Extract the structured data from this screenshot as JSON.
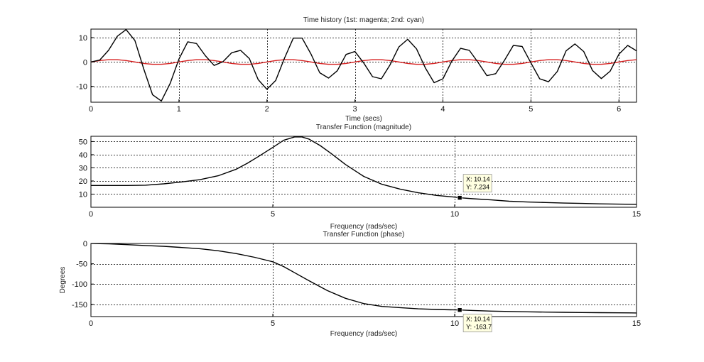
{
  "colors": {
    "response": "#000000",
    "input": "#d62020",
    "tip_bg": "#ffffe1",
    "grid": "#000000"
  },
  "chart_data": [
    {
      "id": "time",
      "type": "line",
      "title": "Time history (1st: magenta; 2nd: cyan)",
      "xlabel": "Time (secs)",
      "ylabel": "",
      "xlim": [
        0,
        6.2
      ],
      "ylim": [
        -16.5,
        13.5
      ],
      "xticks": [
        0,
        1,
        2,
        3,
        4,
        5,
        6
      ],
      "yticks": [
        -10,
        0,
        10
      ],
      "grid": true,
      "series": [
        {
          "color_key": "response",
          "x": [
            0,
            0.1,
            0.2,
            0.3,
            0.4,
            0.5,
            0.6,
            0.7,
            0.8,
            0.9,
            1.0,
            1.1,
            1.2,
            1.3,
            1.4,
            1.5,
            1.6,
            1.7,
            1.8,
            1.9,
            2.0,
            2.1,
            2.2,
            2.3,
            2.4,
            2.5,
            2.6,
            2.7,
            2.8,
            2.9,
            3.0,
            3.1,
            3.2,
            3.3,
            3.4,
            3.5,
            3.6,
            3.7,
            3.8,
            3.9,
            4.0,
            4.1,
            4.2,
            4.3,
            4.4,
            4.5,
            4.6,
            4.7,
            4.8,
            4.9,
            5.0,
            5.1,
            5.2,
            5.3,
            5.4,
            5.5,
            5.6,
            5.7,
            5.8,
            5.9,
            6.0,
            6.1,
            6.2
          ],
          "y": [
            0,
            0.8,
            4.8,
            10.6,
            13.3,
            8.8,
            -2.8,
            -13.4,
            -16.0,
            -8.8,
            1.2,
            8.3,
            7.6,
            2.6,
            -1.4,
            0.1,
            3.8,
            4.8,
            1.4,
            -7.2,
            -11.2,
            -7.6,
            1.6,
            9.8,
            9.8,
            3.3,
            -4.4,
            -6.6,
            -3.6,
            3.1,
            4.3,
            -0.4,
            -6.0,
            -6.9,
            -1.1,
            6.2,
            9.3,
            5.4,
            -2.4,
            -8.5,
            -6.9,
            0.3,
            5.6,
            4.8,
            -0.2,
            -5.6,
            -4.8,
            0.7,
            6.8,
            6.4,
            -0.4,
            -6.9,
            -8.1,
            -3.9,
            4.6,
            7.4,
            4.3,
            -3.5,
            -6.8,
            -3.8,
            3.2,
            6.8,
            4.6
          ]
        },
        {
          "color_key": "input",
          "x": [
            0,
            0.1,
            0.2,
            0.3,
            0.4,
            0.5,
            0.6,
            0.7,
            0.8,
            0.9,
            1.0,
            1.1,
            1.2,
            1.3,
            1.4,
            1.5,
            1.6,
            1.7,
            1.8,
            1.9,
            2.0,
            2.1,
            2.2,
            2.3,
            2.4,
            2.5,
            2.6,
            2.7,
            2.8,
            2.9,
            3.0,
            3.1,
            3.2,
            3.3,
            3.4,
            3.5,
            3.6,
            3.7,
            3.8,
            3.9,
            4.0,
            4.1,
            4.2,
            4.3,
            4.4,
            4.5,
            4.6,
            4.7,
            4.8,
            4.9,
            5.0,
            5.1,
            5.2,
            5.3,
            5.4,
            5.5,
            5.6,
            5.7,
            5.8,
            5.9,
            6.0,
            6.1,
            6.2
          ],
          "y": [
            0,
            0.59,
            0.95,
            0.95,
            0.59,
            0,
            -0.59,
            -0.95,
            -0.95,
            -0.59,
            0,
            0.59,
            0.95,
            0.95,
            0.59,
            0,
            -0.59,
            -0.95,
            -0.95,
            -0.59,
            0,
            0.59,
            0.95,
            0.95,
            0.59,
            0,
            -0.59,
            -0.95,
            -0.95,
            -0.59,
            0,
            0.59,
            0.95,
            0.95,
            0.59,
            0,
            -0.59,
            -0.95,
            -0.95,
            -0.59,
            0,
            0.59,
            0.95,
            0.95,
            0.59,
            0,
            -0.59,
            -0.95,
            -0.95,
            -0.59,
            0,
            0.59,
            0.95,
            0.95,
            0.59,
            0,
            -0.59,
            -0.95,
            -0.95,
            -0.59,
            0,
            0.59,
            0.95
          ]
        }
      ]
    },
    {
      "id": "magnitude",
      "type": "line",
      "title": "Transfer Function (magnitude)",
      "xlabel": "Frequency (rads/sec)",
      "ylabel": "",
      "xlim": [
        0,
        15
      ],
      "ylim": [
        0,
        54
      ],
      "xticks": [
        0,
        5,
        10,
        15
      ],
      "yticks": [
        10,
        20,
        30,
        40,
        50
      ],
      "grid": true,
      "series": [
        {
          "color_key": "response",
          "x": [
            0,
            0.5,
            1.0,
            1.5,
            2.0,
            2.5,
            3.0,
            3.5,
            4.0,
            4.3,
            4.6,
            5.0,
            5.3,
            5.6,
            5.8,
            6.0,
            6.3,
            6.6,
            7.0,
            7.5,
            8.0,
            8.5,
            9.0,
            9.5,
            10.0,
            10.14,
            10.5,
            11.0,
            11.5,
            12.0,
            12.5,
            13.0,
            13.5,
            14.0,
            14.5,
            15.0
          ],
          "y": [
            16.6,
            16.6,
            16.6,
            16.8,
            17.8,
            19.3,
            21.0,
            24.0,
            29.0,
            33.5,
            38.5,
            45.5,
            51.0,
            53.5,
            53.5,
            51.8,
            47.0,
            41.0,
            32.5,
            23.5,
            17.5,
            13.8,
            11.0,
            9.0,
            7.7,
            7.234,
            6.5,
            5.6,
            4.6,
            4.0,
            3.6,
            3.2,
            2.9,
            2.6,
            2.4,
            2.2
          ]
        }
      ],
      "datatip": {
        "x": 10.14,
        "y": 7.234,
        "x_label": "X: 10.14",
        "y_label": "Y: 7.234"
      }
    },
    {
      "id": "phase",
      "type": "line",
      "title": "Transfer Function (phase)",
      "xlabel": "Frequency (rads/sec)",
      "ylabel": "Degrees",
      "xlim": [
        0,
        15
      ],
      "ylim": [
        -180,
        0
      ],
      "xticks": [
        0,
        5,
        10,
        15
      ],
      "yticks": [
        -150,
        -100,
        -50,
        0
      ],
      "grid": true,
      "series": [
        {
          "color_key": "response",
          "x": [
            0,
            0.5,
            1.0,
            1.5,
            2.0,
            2.5,
            3.0,
            3.5,
            4.0,
            4.5,
            5.0,
            5.3,
            5.6,
            6.0,
            6.5,
            7.0,
            7.5,
            8.0,
            8.5,
            9.0,
            9.5,
            10.0,
            10.14,
            10.5,
            11.0,
            11.5,
            12.0,
            12.5,
            13.0,
            13.5,
            14.0,
            14.5,
            15.0
          ],
          "y": [
            0,
            -1,
            -3,
            -5,
            -7,
            -10,
            -13,
            -18,
            -25,
            -34,
            -45,
            -57,
            -72,
            -92,
            -116,
            -135,
            -148,
            -155,
            -158,
            -161,
            -162.5,
            -163.5,
            -163.7,
            -165,
            -166.5,
            -167.5,
            -168.3,
            -169,
            -169.5,
            -170,
            -170.4,
            -170.8,
            -171
          ]
        }
      ],
      "datatip": {
        "x": 10.14,
        "y": -163.7,
        "x_label": "X: 10.14",
        "y_label": "Y: -163.7"
      }
    }
  ]
}
